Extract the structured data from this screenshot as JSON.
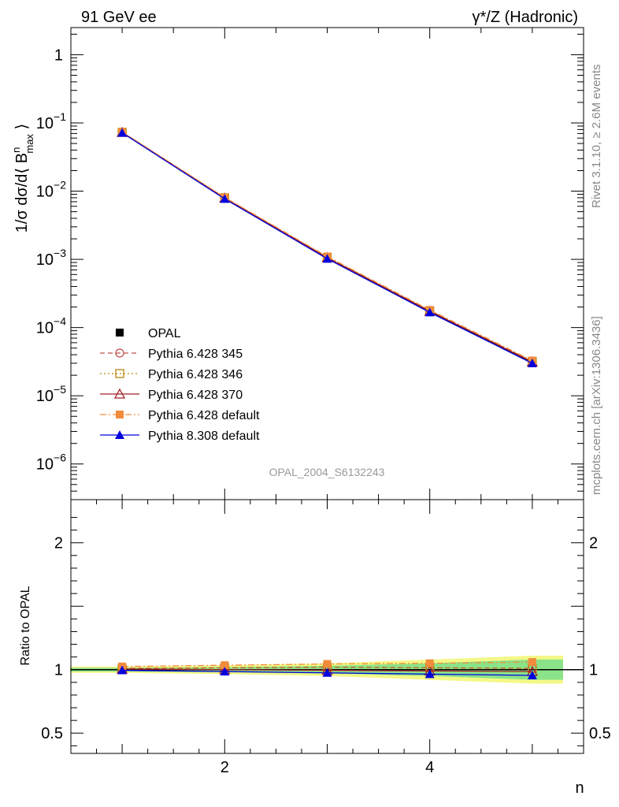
{
  "header": {
    "left_title": "91 GeV ee",
    "right_title": "γ*/Z (Hadronic)"
  },
  "side_text": {
    "rivet": "Rivet 3.1.10, ≥ 2.6M events",
    "mcplots": "mcplots.cern.ch [arXiv:1306.3436]"
  },
  "watermark": "OPAL_2004_S6132243",
  "chart_data": [
    {
      "type": "line",
      "scale": "log",
      "ylabel": "1/σ dσ/d⟨ B^n_max ⟩",
      "xlabel": "",
      "xlim": [
        0.5,
        5.5
      ],
      "ylim": [
        3e-07,
        2.5
      ],
      "yticks": [
        {
          "value": 1,
          "label": "1",
          "exp": ""
        },
        {
          "value": 0.1,
          "label": "10",
          "exp": "−1"
        },
        {
          "value": 0.01,
          "label": "10",
          "exp": "−2"
        },
        {
          "value": 0.001,
          "label": "10",
          "exp": "−3"
        },
        {
          "value": 0.0001,
          "label": "10",
          "exp": "−4"
        },
        {
          "value": 1e-05,
          "label": "10",
          "exp": "−5"
        },
        {
          "value": 1e-06,
          "label": "10",
          "exp": "−6"
        }
      ],
      "x": [
        1,
        2,
        3,
        4,
        5
      ],
      "series": [
        {
          "name": "OPAL",
          "values": [
            0.072,
            0.0078,
            0.00105,
            0.000172,
            3.1e-05
          ],
          "color": "#000000",
          "marker": "square-filled",
          "dash": "solid"
        },
        {
          "name": "Pythia 6.428 345",
          "values": [
            0.073,
            0.008,
            0.00107,
            0.000176,
            3.18e-05
          ],
          "color": "#c0504d",
          "marker": "circle-open",
          "dash": "dashed"
        },
        {
          "name": "Pythia 6.428 346",
          "values": [
            0.073,
            0.008,
            0.00107,
            0.000176,
            3.18e-05
          ],
          "color": "#b8860b",
          "marker": "square-open",
          "dash": "dotted"
        },
        {
          "name": "Pythia 6.428 370",
          "values": [
            0.0725,
            0.0079,
            0.00106,
            0.000174,
            3.14e-05
          ],
          "color": "#a0202a",
          "marker": "triangle-open",
          "dash": "solid"
        },
        {
          "name": "Pythia 6.428 default",
          "values": [
            0.074,
            0.0081,
            0.0011,
            0.000181,
            3.28e-05
          ],
          "color": "#f28c3c",
          "marker": "square-filled",
          "dash": "dashdot"
        },
        {
          "name": "Pythia 8.308 default",
          "values": [
            0.0718,
            0.0077,
            0.00102,
            0.000167,
            2.99e-05
          ],
          "color": "#0000dd",
          "marker": "triangle-filled",
          "dash": "solid"
        }
      ]
    },
    {
      "type": "line",
      "scale": "linear",
      "ylabel": "Ratio to OPAL",
      "xlabel": "n",
      "xlim": [
        0.5,
        5.5
      ],
      "ylim": [
        0.34,
        2.34
      ],
      "yticks": [
        {
          "value": 2,
          "label": "2"
        },
        {
          "value": 1,
          "label": "1"
        },
        {
          "value": 0.5,
          "label": "0.5"
        }
      ],
      "xticks": [
        {
          "value": 2,
          "label": "2"
        },
        {
          "value": 4,
          "label": "4"
        }
      ],
      "x": [
        1,
        2,
        3,
        4,
        5
      ],
      "bands": {
        "stat_green": [
          0.015,
          0.02,
          0.03,
          0.05,
          0.08
        ],
        "total_yellow": [
          0.025,
          0.035,
          0.05,
          0.08,
          0.11
        ]
      },
      "series": [
        {
          "name": "Pythia 6.428 345",
          "values": [
            1.01,
            1.015,
            1.02,
            1.015,
            1.01
          ],
          "color": "#c0504d",
          "marker": "circle-open",
          "dash": "dashed"
        },
        {
          "name": "Pythia 6.428 346",
          "values": [
            1.01,
            1.015,
            1.02,
            1.015,
            1.01
          ],
          "color": "#b8860b",
          "marker": "square-open",
          "dash": "dotted"
        },
        {
          "name": "Pythia 6.428 370",
          "values": [
            1.005,
            1.0,
            0.995,
            0.99,
            0.985
          ],
          "color": "#a0202a",
          "marker": "triangle-open",
          "dash": "solid"
        },
        {
          "name": "Pythia 6.428 default",
          "values": [
            1.025,
            1.035,
            1.045,
            1.05,
            1.06
          ],
          "color": "#f28c3c",
          "marker": "square-filled",
          "dash": "dashdot"
        },
        {
          "name": "Pythia 8.308 default",
          "values": [
            0.995,
            0.985,
            0.975,
            0.965,
            0.955
          ],
          "color": "#0000dd",
          "marker": "triangle-filled",
          "dash": "solid"
        }
      ]
    }
  ]
}
